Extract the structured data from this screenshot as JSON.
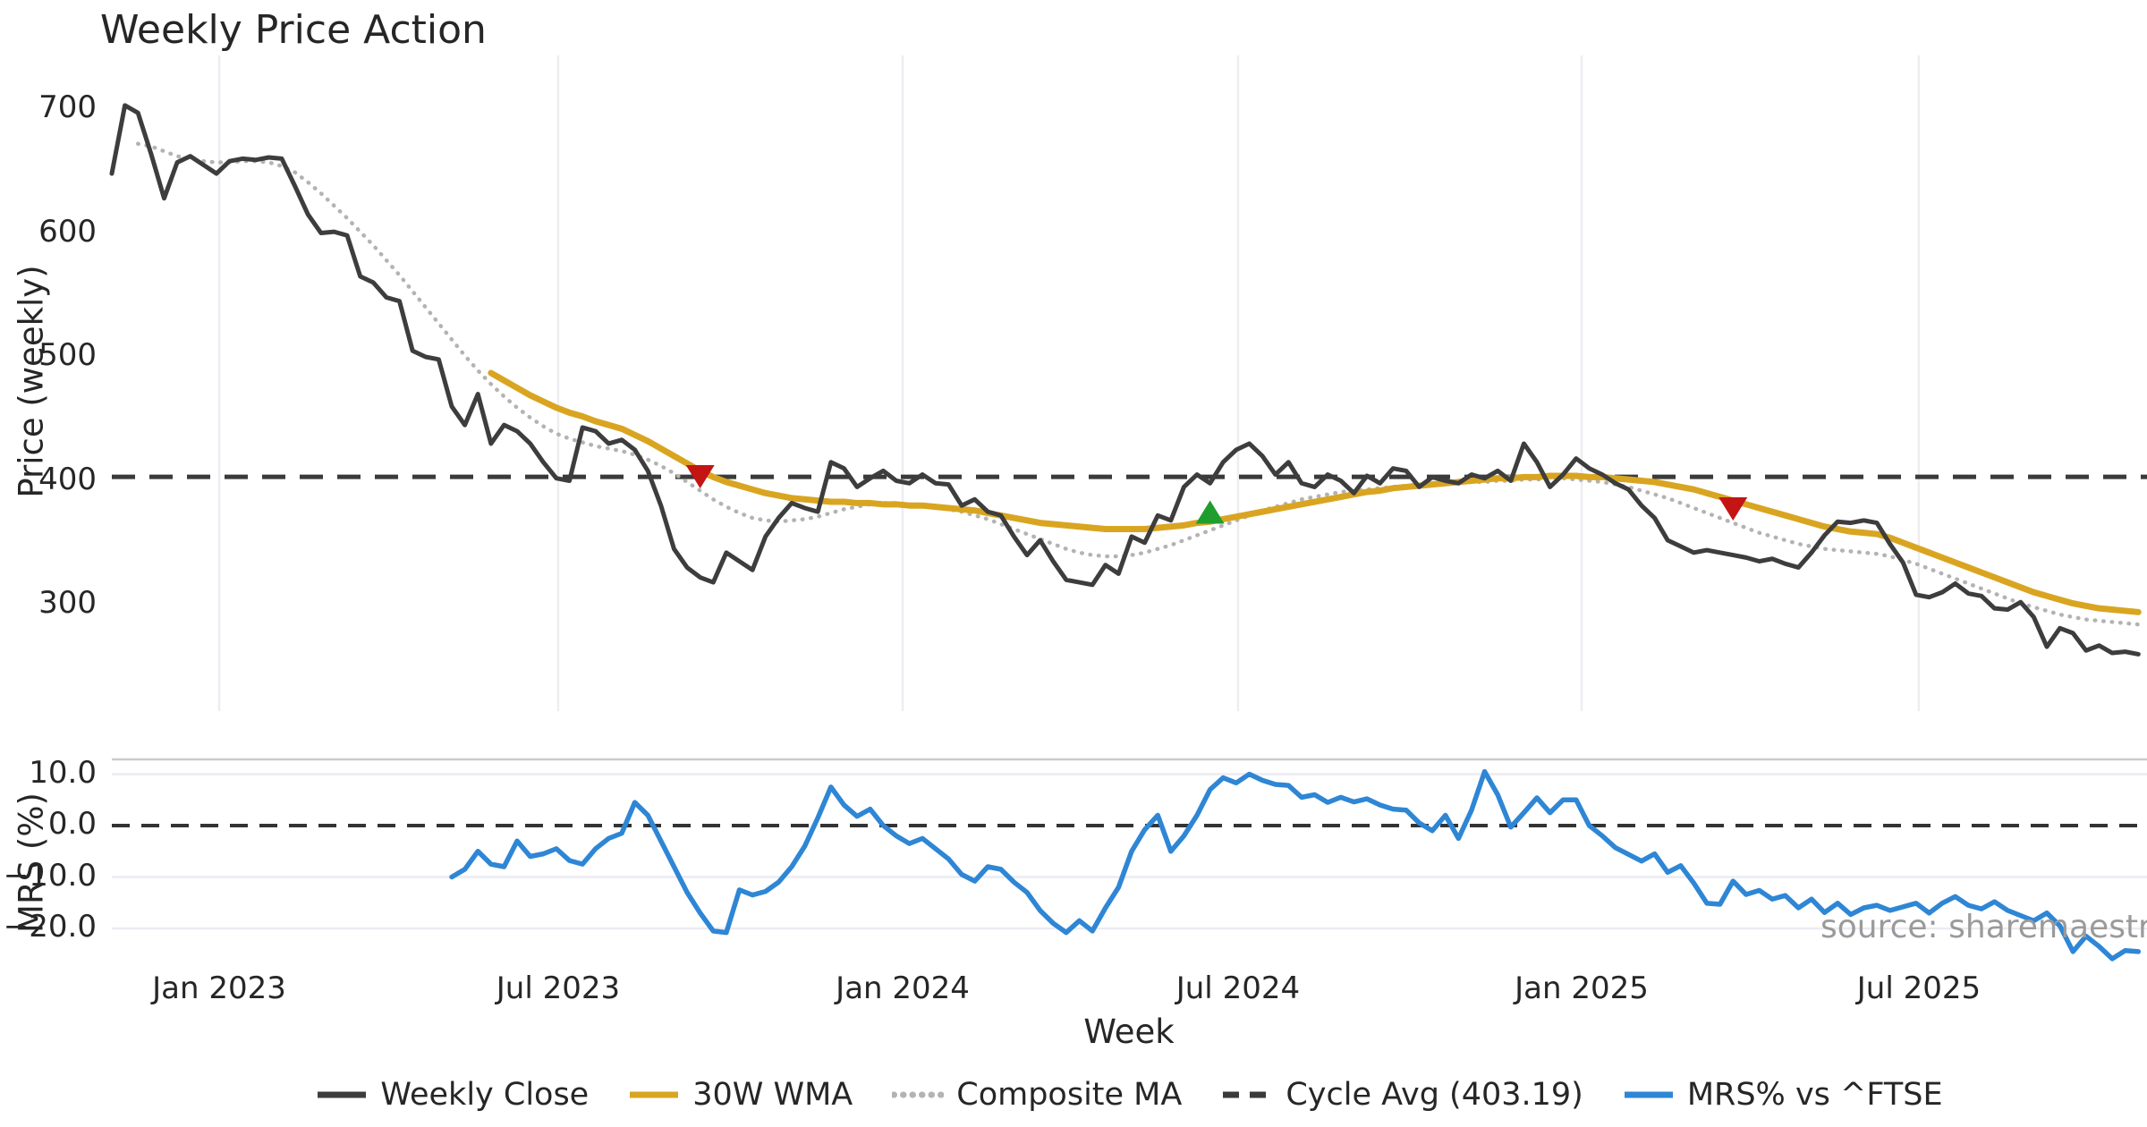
{
  "title": "Weekly Price Action",
  "source_note": "source: sharemaestro.com",
  "colors": {
    "weekly_close": "#3d3d3d",
    "wma_30w": "#d9a521",
    "composite_ma": "#b3b3b3",
    "cycle_avg": "#3a3a3a",
    "mrs_line": "#2e86d5",
    "sell_marker": "#c41414",
    "buy_marker": "#1f9e2e",
    "grid_vertical": "#ededf2",
    "grid_horizontal": "#ebebf3",
    "panel_spine": "#cccccc",
    "text": "#262626",
    "source_text": "#9a9a9a"
  },
  "chart_data": {
    "type": "line",
    "title": "Weekly Price Action",
    "x_axis": {
      "label": "Week",
      "tick_labels": [
        "Jan 2023",
        "Jul 2023",
        "Jan 2024",
        "Jul 2024",
        "Jan 2025",
        "Jul 2025"
      ],
      "tick_weeks": [
        8.21,
        34.14,
        60.49,
        86.14,
        112.42,
        138.21
      ],
      "weeks_total": 156
    },
    "price_axis": {
      "label": "Price (weekly)",
      "tick_labels": [
        "700",
        "600",
        "500",
        "400",
        "300"
      ],
      "tick_values": [
        700,
        600,
        500,
        400,
        300
      ],
      "grid": "vertical-only"
    },
    "mrs_axis": {
      "label": "MRS (%)",
      "tick_labels": [
        "10.0",
        "0.0",
        "−10.0",
        "−20.0"
      ],
      "tick_values": [
        10,
        0,
        -10,
        -20
      ],
      "zero_line": 0,
      "grid": "horizontal-only"
    },
    "cycle_avg_value": 403.19,
    "series": [
      {
        "name": "Weekly Close",
        "panel": "price",
        "style": "solid",
        "color": "#3d3d3d",
        "width": 5,
        "start_week": 0,
        "values": [
          648,
          703,
          697,
          664,
          628,
          657,
          662,
          655,
          648,
          658,
          660,
          659,
          661,
          660,
          638,
          615,
          600,
          601,
          598,
          565,
          560,
          548,
          545,
          505,
          500,
          498,
          460,
          445,
          470,
          430,
          445,
          440,
          430,
          415,
          402,
          400,
          443,
          440,
          430,
          433,
          425,
          408,
          380,
          345,
          330,
          322,
          318,
          342,
          335,
          328,
          355,
          370,
          382,
          378,
          375,
          415,
          410,
          395,
          402,
          408,
          400,
          398,
          405,
          398,
          397,
          380,
          385,
          375,
          372,
          355,
          340,
          352,
          335,
          320,
          318,
          316,
          332,
          325,
          355,
          350,
          372,
          368,
          395,
          405,
          398,
          415,
          425,
          430,
          420,
          405,
          415,
          398,
          395,
          405,
          400,
          390,
          404,
          398,
          410,
          408,
          395,
          403,
          400,
          398,
          405,
          402,
          408,
          400,
          430,
          415,
          395,
          405,
          418,
          410,
          405,
          398,
          393,
          380,
          370,
          352,
          347,
          342,
          344,
          342,
          340,
          338,
          335,
          337,
          333,
          330,
          342,
          356,
          367,
          366,
          368,
          366,
          349,
          334,
          308,
          306,
          310,
          317,
          309,
          307,
          297,
          296,
          302,
          290,
          266,
          281,
          277,
          263,
          267,
          261,
          262,
          260
        ]
      },
      {
        "name": "30W WMA",
        "panel": "price",
        "style": "solid",
        "color": "#d9a521",
        "width": 7,
        "start_week": 29,
        "values": [
          487,
          481,
          475,
          469,
          464,
          459,
          455,
          452,
          448,
          445,
          442,
          437,
          432,
          426,
          420,
          414,
          408,
          403,
          399,
          396,
          393,
          390,
          388,
          386,
          385,
          384,
          383,
          383,
          382,
          382,
          381,
          381,
          380,
          380,
          379,
          378,
          377,
          376,
          374,
          372,
          370,
          368,
          366,
          365,
          364,
          363,
          362,
          361,
          361,
          361,
          361,
          362,
          363,
          364,
          366,
          367,
          369,
          371,
          373,
          375,
          377,
          379,
          381,
          383,
          385,
          387,
          389,
          391,
          392,
          394,
          395,
          396,
          397,
          398,
          399,
          400,
          401,
          402,
          402,
          403,
          403,
          404,
          404,
          404,
          403,
          403,
          402,
          401,
          400,
          399,
          397,
          395,
          393,
          390,
          387,
          384,
          381,
          378,
          375,
          372,
          369,
          366,
          363,
          361,
          359,
          358,
          357,
          354,
          350,
          346,
          342,
          338,
          334,
          330,
          326,
          322,
          318,
          314,
          310,
          307,
          304,
          301,
          299,
          297,
          296,
          295,
          294
        ]
      },
      {
        "name": "Composite MA",
        "panel": "price",
        "style": "dotted",
        "color": "#b3b3b3",
        "width": 4.5,
        "start_week": 2,
        "values": [
          672,
          670,
          666,
          662,
          660,
          658,
          657,
          657,
          658,
          658,
          657,
          654,
          649,
          641,
          632,
          622,
          612,
          601,
          590,
          578,
          566,
          553,
          540,
          527,
          514,
          501,
          489,
          478,
          468,
          459,
          451,
          444,
          438,
          434,
          431,
          428,
          426,
          424,
          421,
          417,
          412,
          406,
          399,
          392,
          385,
          379,
          374,
          370,
          368,
          367,
          368,
          369,
          371,
          374,
          377,
          379,
          381,
          382,
          382,
          381,
          380,
          379,
          377,
          375,
          372,
          369,
          365,
          361,
          357,
          353,
          349,
          345,
          342,
          340,
          339,
          339,
          340,
          342,
          345,
          348,
          352,
          356,
          360,
          364,
          368,
          372,
          376,
          379,
          382,
          385,
          387,
          389,
          391,
          392,
          393,
          394,
          395,
          396,
          397,
          397,
          398,
          398,
          399,
          399,
          400,
          400,
          401,
          401,
          402,
          402,
          401,
          400,
          399,
          397,
          395,
          392,
          389,
          386,
          382,
          378,
          374,
          370,
          366,
          362,
          358,
          355,
          352,
          349,
          347,
          345,
          344,
          343,
          342,
          341,
          339,
          336,
          333,
          329,
          325,
          321,
          317,
          313,
          309,
          305,
          301,
          298,
          295,
          292,
          290,
          288,
          287,
          286,
          285,
          284
        ]
      },
      {
        "name": "Cycle Avg (403.19)",
        "panel": "price",
        "style": "dashed",
        "color": "#3a3a3a",
        "width": 5,
        "constant": 403.19
      },
      {
        "name": "MRS% vs ^FTSE",
        "panel": "mrs",
        "style": "solid",
        "color": "#2e86d5",
        "width": 5.5,
        "start_week": 26,
        "values": [
          -10,
          -8.5,
          -5,
          -7.5,
          -8,
          -3,
          -6,
          -5.5,
          -4.5,
          -6.8,
          -7.5,
          -4.5,
          -2.5,
          -1.5,
          4.5,
          2,
          -3,
          -8,
          -13,
          -17,
          -20.5,
          -20.8,
          -12.5,
          -13.5,
          -12.8,
          -11,
          -8,
          -4,
          1.5,
          7.5,
          4,
          1.8,
          3.2,
          0,
          -2,
          -3.5,
          -2.5,
          -4.5,
          -6.5,
          -9.5,
          -10.8,
          -8,
          -8.5,
          -11,
          -13,
          -16.5,
          -19,
          -20.8,
          -18.5,
          -20.5,
          -16,
          -12,
          -5,
          -0.8,
          2,
          -5,
          -2,
          2,
          7,
          9.3,
          8.3,
          10,
          8.8,
          8,
          7.8,
          5.5,
          6,
          4.5,
          5.5,
          4.6,
          5.2,
          4,
          3.2,
          3,
          0.5,
          -1,
          2,
          -2.5,
          3,
          10.5,
          6,
          -0.3,
          2.5,
          5.4,
          2.5,
          5,
          5,
          0,
          -2,
          -4.3,
          -5.6,
          -6.9,
          -5.5,
          -9.1,
          -7.8,
          -11.2,
          -15.1,
          -15.3,
          -10.8,
          -13.4,
          -12.6,
          -14.3,
          -13.6,
          -16,
          -14.3,
          -16.9,
          -15.1,
          -17.3,
          -16,
          -15.5,
          -16.5,
          -15.8,
          -15.1,
          -17,
          -15.1,
          -13.8,
          -15.5,
          -16.2,
          -14.8,
          -16.5,
          -17.5,
          -18.5,
          -17,
          -19.5,
          -24.5,
          -21.5,
          -23.5,
          -25.9,
          -24.3,
          -24.5
        ]
      }
    ],
    "markers": {
      "sell": {
        "shape": "triangle-down",
        "color": "#c41414",
        "points": [
          {
            "week": 45,
            "price": 404
          },
          {
            "week": 124,
            "price": 378
          }
        ]
      },
      "buy": {
        "shape": "triangle-up",
        "color": "#1f9e2e",
        "points": [
          {
            "week": 84,
            "price": 374
          }
        ]
      }
    },
    "legend_position": "bottom-center"
  },
  "legend": {
    "items": [
      {
        "label": "Weekly Close",
        "style": "solid",
        "color": "#3d3d3d"
      },
      {
        "label": "30W WMA",
        "style": "solid",
        "color": "#d9a521"
      },
      {
        "label": "Composite MA",
        "style": "dotted",
        "color": "#b3b3b3"
      },
      {
        "label": "Cycle Avg (403.19)",
        "style": "dashed",
        "color": "#3a3a3a"
      },
      {
        "label": "MRS% vs ^FTSE",
        "style": "solid",
        "color": "#2e86d5"
      }
    ]
  }
}
